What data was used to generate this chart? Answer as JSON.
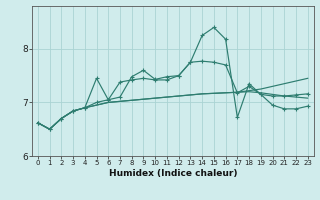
{
  "xlabel": "Humidex (Indice chaleur)",
  "x_values": [
    0,
    1,
    2,
    3,
    4,
    5,
    6,
    7,
    8,
    9,
    10,
    11,
    12,
    13,
    14,
    15,
    16,
    17,
    18,
    19,
    20,
    21,
    22,
    23
  ],
  "line_spiky": [
    6.62,
    6.5,
    6.7,
    6.84,
    6.9,
    7.0,
    7.05,
    7.38,
    7.42,
    7.45,
    7.42,
    7.42,
    7.5,
    7.75,
    8.25,
    8.4,
    8.18,
    6.72,
    7.35,
    7.15,
    6.95,
    6.88,
    6.88,
    6.93
  ],
  "line_wavy": [
    6.62,
    6.5,
    6.7,
    6.84,
    6.9,
    7.45,
    7.05,
    7.1,
    7.48,
    7.6,
    7.43,
    7.48,
    7.5,
    7.75,
    7.77,
    7.75,
    7.7,
    7.18,
    7.3,
    7.15,
    7.12,
    7.12,
    7.14,
    7.16
  ],
  "line_flat1": [
    6.62,
    6.5,
    6.7,
    6.84,
    6.9,
    6.95,
    7.0,
    7.02,
    7.04,
    7.06,
    7.08,
    7.1,
    7.12,
    7.14,
    7.16,
    7.17,
    7.18,
    7.19,
    7.2,
    7.18,
    7.15,
    7.12,
    7.1,
    7.08
  ],
  "line_flat2": [
    6.62,
    6.5,
    6.7,
    6.84,
    6.9,
    6.95,
    7.0,
    7.02,
    7.04,
    7.06,
    7.08,
    7.1,
    7.12,
    7.14,
    7.16,
    7.17,
    7.18,
    7.19,
    7.22,
    7.25,
    7.3,
    7.35,
    7.4,
    7.45
  ],
  "line_color": "#2e7d70",
  "bg_color": "#d0ecec",
  "grid_color": "#aad4d4",
  "ylim": [
    6.0,
    8.8
  ],
  "yticks": [
    6,
    7,
    8
  ],
  "xlim": [
    -0.5,
    23.5
  ]
}
